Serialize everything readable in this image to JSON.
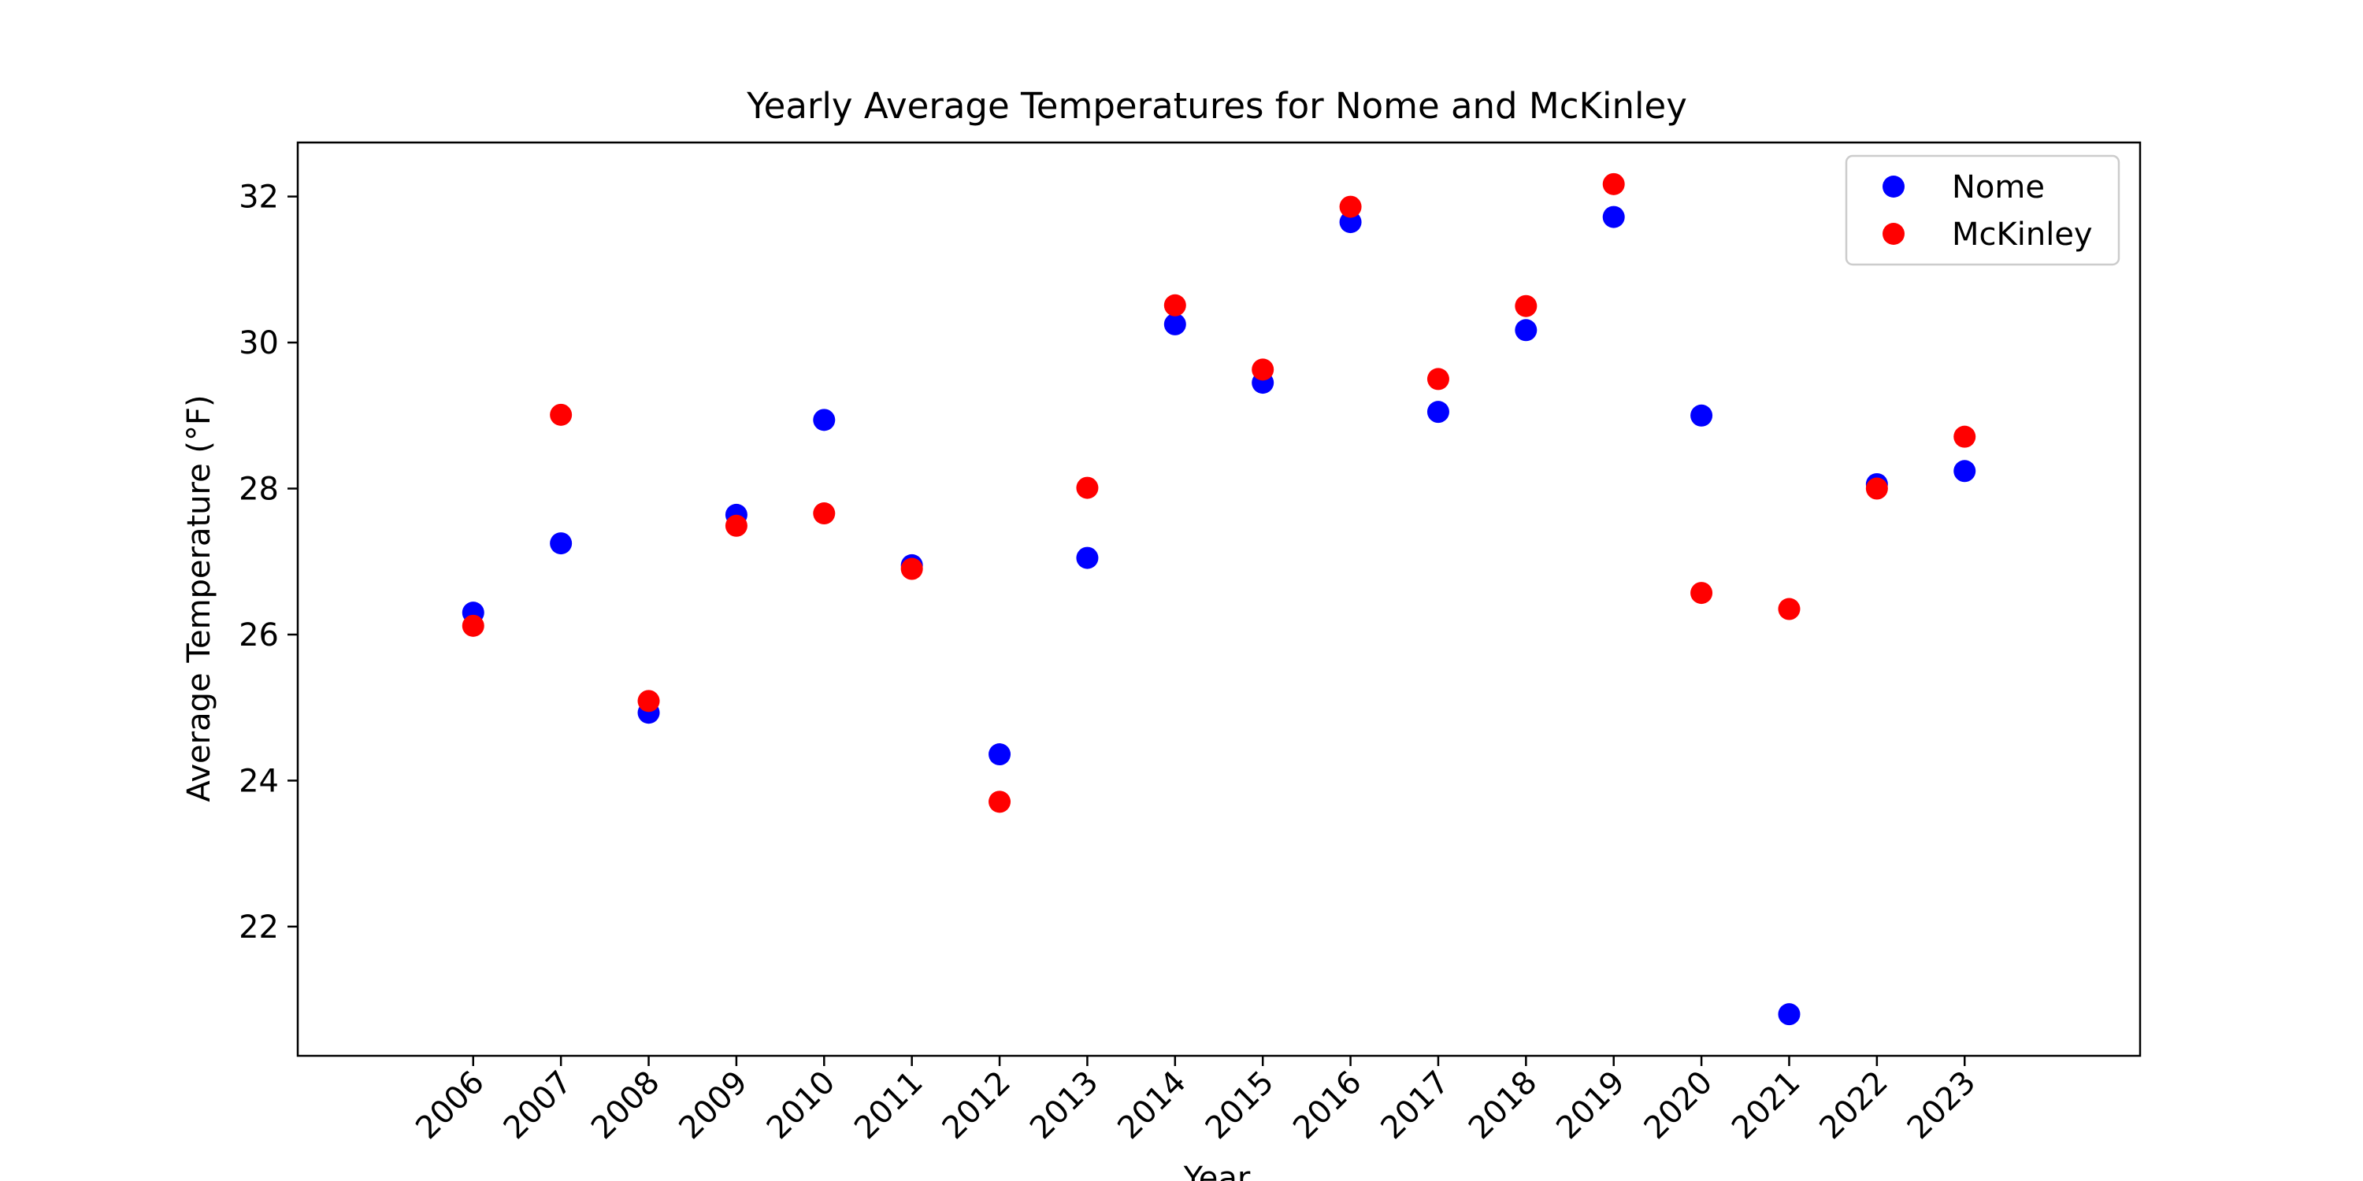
{
  "chart_data": {
    "type": "scatter",
    "title": "Yearly Average Temperatures for Nome and McKinley",
    "xlabel": "Year",
    "ylabel": "Average Temperature (°F)",
    "x": [
      2006,
      2007,
      2008,
      2009,
      2010,
      2011,
      2012,
      2013,
      2014,
      2015,
      2016,
      2017,
      2018,
      2019,
      2020,
      2021,
      2022,
      2023
    ],
    "x_tick_labels": [
      "2006",
      "2007",
      "2008",
      "2009",
      "2010",
      "2011",
      "2012",
      "2013",
      "2014",
      "2015",
      "2016",
      "2017",
      "2018",
      "2019",
      "2020",
      "2021",
      "2022",
      "2023"
    ],
    "y_ticks": [
      22,
      24,
      26,
      28,
      30,
      32
    ],
    "y_tick_labels": [
      "22",
      "24",
      "26",
      "28",
      "30",
      "32"
    ],
    "xlim": [
      2004.0,
      2025.0
    ],
    "ylim": [
      20.23,
      32.74
    ],
    "grid": false,
    "legend_position": "top-right",
    "series": [
      {
        "name": "Nome",
        "color": "#0000ff",
        "values": [
          26.3,
          27.25,
          24.93,
          27.64,
          28.94,
          26.95,
          24.36,
          27.05,
          30.25,
          29.45,
          31.65,
          29.05,
          30.17,
          31.72,
          29.0,
          20.8,
          28.06,
          28.24
        ]
      },
      {
        "name": "McKinley",
        "color": "#ff0000",
        "values": [
          26.12,
          29.01,
          25.09,
          27.49,
          27.66,
          26.9,
          23.71,
          28.01,
          30.51,
          29.63,
          31.86,
          29.5,
          30.5,
          32.17,
          26.57,
          26.35,
          28.0,
          28.71
        ]
      }
    ]
  }
}
